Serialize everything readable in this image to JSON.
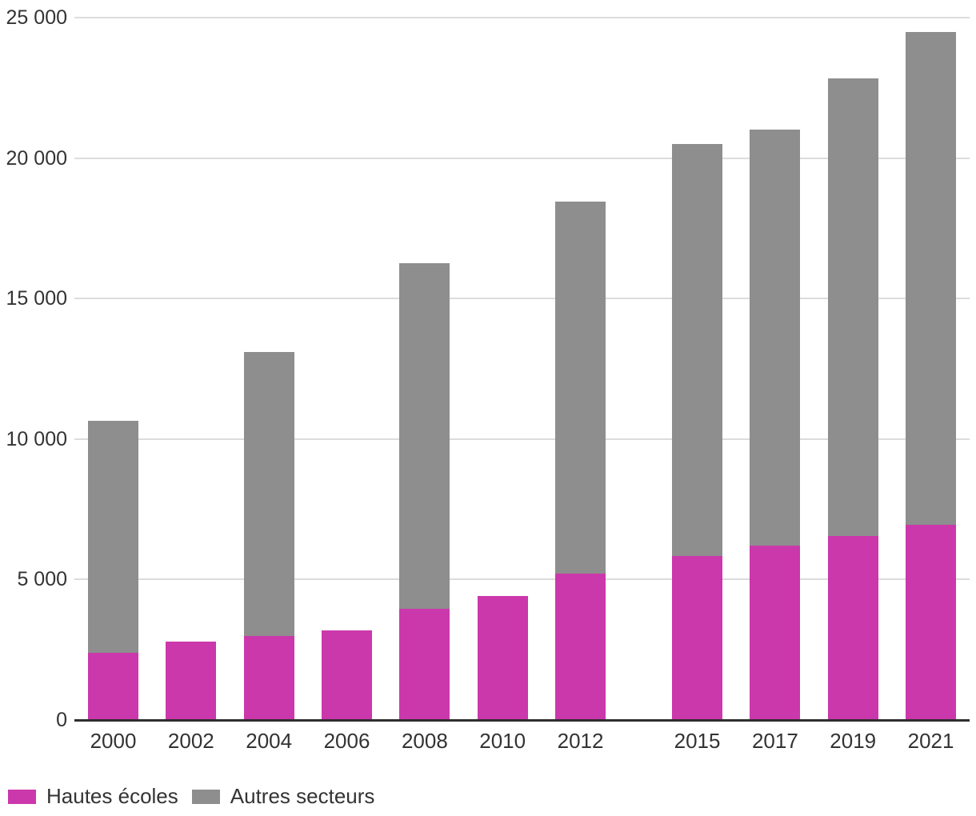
{
  "chart_data": {
    "type": "bar",
    "stacked": true,
    "title": "",
    "xlabel": "",
    "ylabel": "",
    "categories": [
      "2000",
      "2002",
      "2004",
      "2006",
      "2008",
      "2010",
      "2012",
      "2015",
      "2017",
      "2019",
      "2021"
    ],
    "series": [
      {
        "name": "Hautes écoles",
        "color": "#cb38ab",
        "values": [
          2400,
          2800,
          3000,
          3200,
          3950,
          4400,
          5200,
          5850,
          6200,
          6550,
          6950
        ]
      },
      {
        "name": "Autres secteurs",
        "color": "#8e8e8e",
        "values": [
          8250,
          0,
          10100,
          0,
          12300,
          0,
          13250,
          14650,
          14800,
          16300,
          17550
        ]
      }
    ],
    "totals": [
      10650,
      2800,
      13100,
      3200,
      16250,
      4400,
      18450,
      20500,
      21000,
      22850,
      24500
    ],
    "ylim": [
      0,
      25000
    ],
    "yticks": [
      {
        "value": 0,
        "label": "0"
      },
      {
        "value": 5000,
        "label": "5 000"
      },
      {
        "value": 10000,
        "label": "10 000"
      },
      {
        "value": 15000,
        "label": "15 000"
      },
      {
        "value": 20000,
        "label": "20 000"
      },
      {
        "value": 25000,
        "label": "25 000"
      }
    ],
    "grid": "horizontal",
    "legend_position": "bottom-left",
    "axis_colors": {
      "gridline": "#dcdcdc",
      "baseline": "#2e2e2e",
      "text": "#333333"
    }
  }
}
